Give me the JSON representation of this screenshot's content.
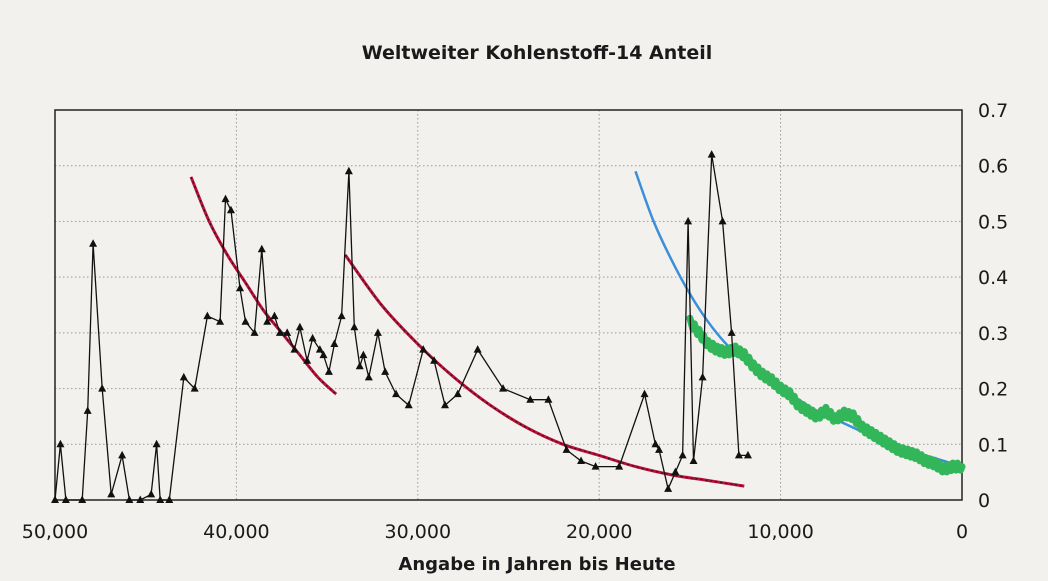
{
  "chart_data": {
    "type": "line",
    "title": "Weltweiter Kohlenstoff-14 Anteil",
    "xlabel": "Angabe in Jahren bis Heute",
    "ylabel": "",
    "xlim": [
      50000,
      0
    ],
    "ylim": [
      0,
      0.7
    ],
    "x_ticks": [
      "50,000",
      "40,000",
      "30,000",
      "20,000",
      "10,000",
      "0"
    ],
    "y_ticks": [
      "0",
      "0.1",
      "0.2",
      "0.3",
      "0.4",
      "0.5",
      "0.6",
      "0.7"
    ],
    "grid": true,
    "colors": {
      "measured": "#111111",
      "fit_red": "#b5123a",
      "fit_blue": "#3a8fd8",
      "recent": "#33b55a"
    },
    "series": [
      {
        "kind": "measured-triangles",
        "x": [
          50000,
          49700,
          49400,
          48500,
          48200,
          47900,
          47400,
          46900,
          46300,
          45900,
          45300,
          44700,
          44400,
          44200,
          43700,
          42900,
          42300,
          41600,
          40900,
          40600,
          40300,
          39800,
          39500,
          39000,
          38600,
          38300,
          37900,
          37600,
          37200,
          36800,
          36500,
          36100,
          35800,
          35400,
          35200,
          34900,
          34600,
          34200,
          33800,
          33500,
          33200,
          33000,
          32700,
          32200,
          31800,
          31200,
          30500,
          29700,
          29100,
          28500,
          27800,
          26700,
          25300,
          23800,
          22800,
          21800,
          21000,
          20200,
          18900,
          17500,
          16900,
          16700,
          16200,
          15800,
          15400,
          15100,
          14800,
          14300,
          13800,
          13200,
          12700,
          12300,
          11800
        ],
        "y": [
          0.0,
          0.1,
          0.0,
          0.0,
          0.16,
          0.46,
          0.2,
          0.01,
          0.08,
          0.0,
          0.0,
          0.01,
          0.1,
          0.0,
          0.0,
          0.22,
          0.2,
          0.33,
          0.32,
          0.54,
          0.52,
          0.38,
          0.32,
          0.3,
          0.45,
          0.32,
          0.33,
          0.3,
          0.3,
          0.27,
          0.31,
          0.25,
          0.29,
          0.27,
          0.26,
          0.23,
          0.28,
          0.33,
          0.59,
          0.31,
          0.24,
          0.26,
          0.22,
          0.3,
          0.23,
          0.19,
          0.17,
          0.27,
          0.25,
          0.17,
          0.19,
          0.27,
          0.2,
          0.18,
          0.18,
          0.09,
          0.07,
          0.06,
          0.06,
          0.19,
          0.1,
          0.09,
          0.02,
          0.05,
          0.08,
          0.5,
          0.07,
          0.22,
          0.62,
          0.5,
          0.3,
          0.08,
          0.08
        ]
      },
      {
        "kind": "fit-red-1",
        "x": [
          42500,
          41500,
          40500,
          39500,
          38500,
          37500,
          36500,
          35500,
          34500
        ],
        "y": [
          0.58,
          0.5,
          0.44,
          0.39,
          0.34,
          0.3,
          0.26,
          0.22,
          0.19
        ]
      },
      {
        "kind": "fit-red-2",
        "x": [
          34000,
          32000,
          30000,
          28000,
          26000,
          24000,
          22000,
          20000,
          18000,
          16000,
          14000,
          12000
        ],
        "y": [
          0.44,
          0.35,
          0.28,
          0.22,
          0.17,
          0.13,
          0.1,
          0.08,
          0.06,
          0.045,
          0.035,
          0.025
        ]
      },
      {
        "kind": "fit-blue",
        "x": [
          18000,
          17000,
          16000,
          15000,
          14000,
          13000,
          12000,
          11000,
          10000,
          9000,
          8000,
          7000,
          6000,
          5000,
          4000,
          3000,
          2000,
          1000,
          0
        ],
        "y": [
          0.59,
          0.5,
          0.43,
          0.37,
          0.32,
          0.28,
          0.25,
          0.22,
          0.2,
          0.18,
          0.16,
          0.145,
          0.13,
          0.115,
          0.1,
          0.09,
          0.08,
          0.07,
          0.06
        ]
      },
      {
        "kind": "recent-green",
        "x": [
          15000,
          14500,
          14000,
          13500,
          13000,
          12500,
          12000,
          11500,
          11000,
          10500,
          10000,
          9500,
          9000,
          8500,
          8000,
          7500,
          7000,
          6500,
          6000,
          5500,
          5000,
          4500,
          4000,
          3500,
          3000,
          2500,
          2000,
          1500,
          1000,
          500,
          0
        ],
        "y": [
          0.32,
          0.3,
          0.28,
          0.27,
          0.265,
          0.27,
          0.26,
          0.24,
          0.225,
          0.215,
          0.2,
          0.19,
          0.17,
          0.16,
          0.15,
          0.16,
          0.145,
          0.155,
          0.15,
          0.13,
          0.12,
          0.11,
          0.1,
          0.09,
          0.085,
          0.08,
          0.07,
          0.065,
          0.055,
          0.06,
          0.06
        ]
      }
    ]
  }
}
